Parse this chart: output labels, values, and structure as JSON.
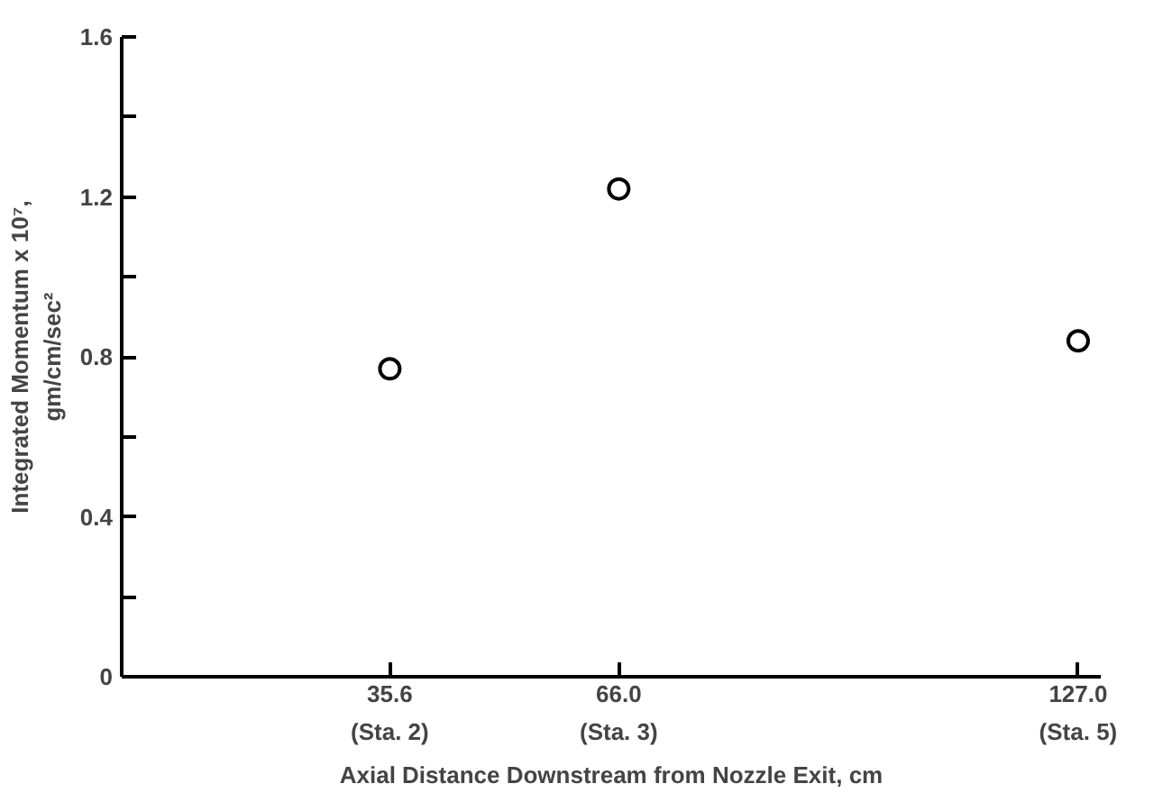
{
  "chart_data": {
    "type": "scatter",
    "xlabel": "Axial Distance Downstream from Nozzle Exit, cm",
    "ylabel": "Integrated Momentum x 10⁷,\ngm/cm/sec²",
    "x": [
      35.6,
      66.0,
      127.0
    ],
    "series": [
      {
        "color": "#000000",
        "values": [
          0.77,
          1.22,
          0.84
        ]
      }
    ],
    "xlim": [
      0,
      130
    ],
    "xticks": [
      35.6,
      {
        "value": 66.0,
        "label": "66.0"
      },
      {
        "value": 127.0,
        "label": "127.0"
      }
    ],
    "annotations": [
      "(Sta. 2)",
      "(Sta. 3)",
      "(Sta. 5)"
    ],
    "ylim": [
      0,
      1.6
    ],
    "yticks": [
      0,
      {
        "value": 0.2,
        "label": null
      },
      0.4,
      {
        "value": 0.6,
        "label": null
      },
      0.8,
      {
        "value": 1.0,
        "label": null
      },
      1.2,
      {
        "value": 1.4,
        "label": null
      },
      1.6
    ],
    "grid": false
  }
}
